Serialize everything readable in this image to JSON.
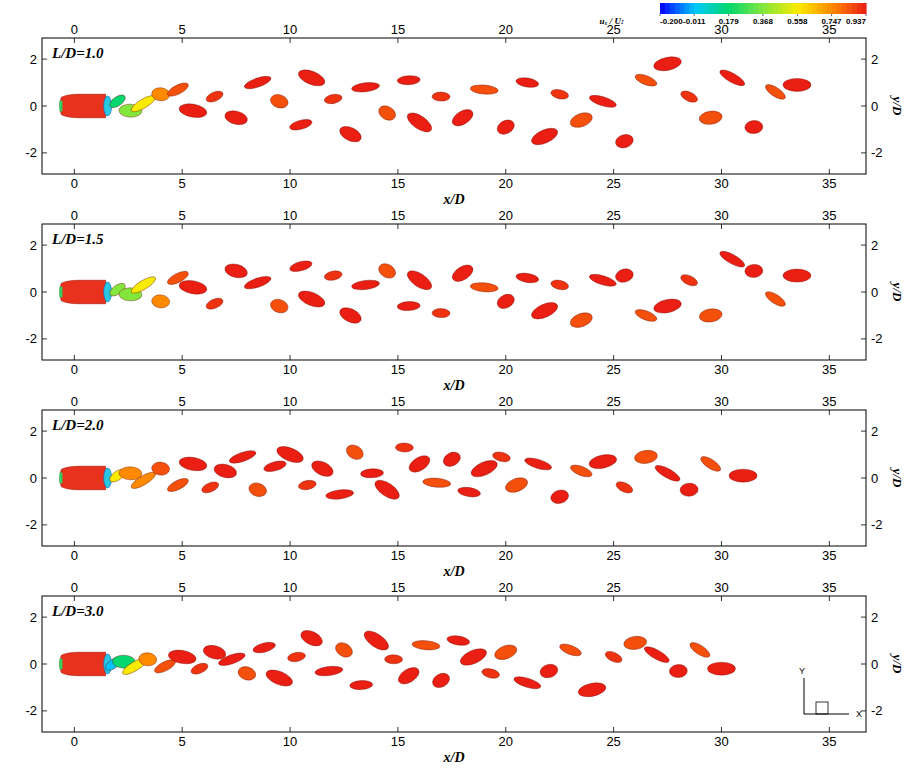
{
  "chart_data": [
    {
      "type": "scatter",
      "title": "L/D=1.0",
      "x_label": "x/D",
      "y_label": "y/D",
      "xlim": [
        -1.5,
        36.7
      ],
      "ylim": [
        -2.9,
        2.9
      ],
      "xticks": [
        0,
        5,
        10,
        15,
        20,
        25,
        30,
        35
      ],
      "yticks": [
        -2,
        0,
        2
      ],
      "x": [
        2.0,
        2.6,
        3.2,
        4.0,
        4.8,
        5.5,
        6.5,
        7.5,
        8.5,
        9.5,
        10.5,
        11.0,
        12.0,
        12.8,
        13.5,
        14.5,
        15.5,
        16.0,
        17.0,
        18.0,
        19.0,
        20.0,
        21.0,
        21.8,
        22.5,
        23.5,
        24.5,
        25.5,
        26.5,
        27.5,
        28.5,
        29.5,
        30.5,
        31.5,
        32.5,
        33.5
      ],
      "values": [
        0.2,
        -0.2,
        0.1,
        0.5,
        0.7,
        -0.2,
        0.4,
        -0.5,
        1.0,
        0.2,
        -0.8,
        1.2,
        0.3,
        -1.2,
        0.8,
        -0.3,
        1.1,
        -0.7,
        0.4,
        -0.5,
        0.7,
        -0.9,
        1.0,
        -1.3,
        0.5,
        -0.6,
        0.2,
        -1.5,
        1.1,
        1.8,
        0.4,
        -0.5,
        1.2,
        -0.9,
        0.6,
        0.9
      ],
      "color_values": [
        0.179,
        0.368,
        0.558,
        0.747,
        0.85,
        0.937,
        0.9,
        0.937,
        0.937,
        0.85,
        0.937,
        0.937,
        0.9,
        0.937,
        0.937,
        0.85,
        0.937,
        0.937,
        0.9,
        0.937,
        0.85,
        0.937,
        0.937,
        0.937,
        0.9,
        0.85,
        0.937,
        0.937,
        0.85,
        0.937,
        0.9,
        0.85,
        0.937,
        0.937,
        0.85,
        0.937
      ],
      "colorbar_label": "uₓ / U:",
      "colorbar_range": [
        -0.2,
        0.937
      ],
      "colorbar_ticks": [
        {
          "value": -0.2,
          "label": "-0.200"
        },
        -0.011,
        0.179,
        0.368,
        0.558,
        0.747,
        0.937
      ]
    },
    {
      "type": "scatter",
      "title": "L/D=1.5",
      "x_label": "x/D",
      "y_label": "y/D",
      "xlim": [
        -1.5,
        36.7
      ],
      "ylim": [
        -2.9,
        2.9
      ],
      "xticks": [
        0,
        5,
        10,
        15,
        20,
        25,
        30,
        35
      ],
      "yticks": [
        -2,
        0,
        2
      ],
      "x": [
        2.0,
        2.6,
        3.2,
        4.0,
        4.8,
        5.5,
        6.5,
        7.5,
        8.5,
        9.5,
        10.5,
        11.0,
        12.0,
        12.8,
        13.5,
        14.5,
        15.5,
        16.0,
        17.0,
        18.0,
        19.0,
        20.0,
        21.0,
        21.8,
        22.5,
        23.5,
        24.5,
        25.5,
        26.5,
        27.5,
        28.5,
        29.5,
        30.5,
        31.5,
        32.5,
        33.5
      ],
      "values": [
        0.1,
        -0.1,
        0.3,
        -0.4,
        0.6,
        0.2,
        -0.5,
        0.9,
        0.4,
        -0.6,
        1.1,
        -0.3,
        0.7,
        -1.0,
        0.3,
        0.9,
        -0.6,
        0.5,
        -0.9,
        0.8,
        0.2,
        -0.4,
        0.6,
        -0.8,
        0.3,
        -1.2,
        0.5,
        0.7,
        -1.0,
        -0.6,
        0.5,
        -1.0,
        1.4,
        0.9,
        -0.3,
        0.7
      ],
      "color_values": [
        0.368,
        0.368,
        0.558,
        0.747,
        0.85,
        0.937,
        0.9,
        0.937,
        0.937,
        0.85,
        0.937,
        0.937,
        0.9,
        0.937,
        0.937,
        0.85,
        0.937,
        0.937,
        0.9,
        0.937,
        0.85,
        0.937,
        0.937,
        0.937,
        0.9,
        0.85,
        0.937,
        0.937,
        0.85,
        0.937,
        0.9,
        0.85,
        0.937,
        0.937,
        0.85,
        0.937
      ]
    },
    {
      "type": "scatter",
      "title": "L/D=2.0",
      "x_label": "x/D",
      "y_label": "y/D",
      "xlim": [
        -1.5,
        36.7
      ],
      "ylim": [
        -2.9,
        2.9
      ],
      "xticks": [
        0,
        5,
        10,
        15,
        20,
        25,
        30,
        35
      ],
      "yticks": [
        -2,
        0,
        2
      ],
      "x": [
        2.0,
        2.6,
        3.2,
        4.0,
        4.8,
        5.5,
        6.3,
        7.0,
        7.8,
        8.5,
        9.3,
        10.0,
        10.8,
        11.5,
        12.3,
        13.0,
        13.8,
        14.5,
        15.3,
        16.0,
        16.8,
        17.5,
        18.3,
        19.0,
        19.8,
        20.5,
        21.5,
        22.5,
        23.5,
        24.5,
        25.5,
        26.5,
        27.5,
        28.5,
        29.5,
        31.0
      ],
      "values": [
        0.1,
        0.2,
        -0.1,
        0.4,
        -0.3,
        0.6,
        -0.4,
        0.3,
        0.9,
        -0.5,
        0.5,
        1.0,
        -0.3,
        0.4,
        -0.7,
        1.1,
        0.2,
        -0.5,
        1.3,
        0.6,
        -0.2,
        0.8,
        -0.6,
        0.4,
        0.9,
        -0.3,
        0.6,
        -0.8,
        0.3,
        0.7,
        -0.4,
        0.9,
        0.2,
        -0.5,
        0.6,
        0.1
      ],
      "color_values": [
        0.558,
        0.747,
        0.747,
        0.85,
        0.85,
        0.937,
        0.9,
        0.937,
        0.937,
        0.85,
        0.937,
        0.937,
        0.9,
        0.937,
        0.937,
        0.85,
        0.937,
        0.937,
        0.9,
        0.937,
        0.85,
        0.937,
        0.937,
        0.937,
        0.9,
        0.85,
        0.937,
        0.937,
        0.85,
        0.937,
        0.9,
        0.85,
        0.937,
        0.937,
        0.85,
        0.937
      ]
    },
    {
      "type": "scatter",
      "title": "L/D=3.0",
      "x_label": "x/D",
      "y_label": "y/D",
      "xlim": [
        -1.5,
        36.7
      ],
      "ylim": [
        -2.9,
        2.9
      ],
      "xticks": [
        0,
        5,
        10,
        15,
        20,
        25,
        30,
        35
      ],
      "yticks": [
        -2,
        0,
        2
      ],
      "x": [
        1.8,
        2.3,
        2.8,
        3.4,
        4.2,
        5.0,
        5.8,
        6.5,
        7.3,
        8.0,
        8.8,
        9.5,
        10.3,
        11.0,
        11.8,
        12.5,
        13.3,
        14.0,
        14.8,
        15.5,
        16.3,
        17.0,
        17.8,
        18.5,
        19.3,
        20.0,
        21.0,
        22.0,
        23.0,
        24.0,
        25.0,
        26.0,
        27.0,
        28.0,
        29.0,
        30.0
      ],
      "values": [
        0.0,
        0.1,
        -0.1,
        0.2,
        -0.1,
        0.3,
        -0.2,
        0.5,
        0.2,
        -0.4,
        0.7,
        -0.6,
        0.3,
        1.1,
        -0.3,
        0.6,
        -0.9,
        1.0,
        0.2,
        -0.5,
        0.8,
        -0.7,
        1.0,
        0.3,
        -0.4,
        0.5,
        -0.8,
        -0.3,
        0.6,
        -1.1,
        0.3,
        0.9,
        0.4,
        -0.3,
        0.6,
        -0.2
      ],
      "color_values": [
        -0.011,
        0.179,
        0.558,
        0.747,
        0.85,
        0.937,
        0.9,
        0.937,
        0.937,
        0.85,
        0.937,
        0.937,
        0.9,
        0.937,
        0.937,
        0.85,
        0.937,
        0.937,
        0.9,
        0.937,
        0.85,
        0.937,
        0.937,
        0.937,
        0.9,
        0.85,
        0.937,
        0.937,
        0.85,
        0.937,
        0.9,
        0.85,
        0.937,
        0.937,
        0.85,
        0.937
      ],
      "annotations": [
        "Y",
        "X"
      ]
    }
  ]
}
